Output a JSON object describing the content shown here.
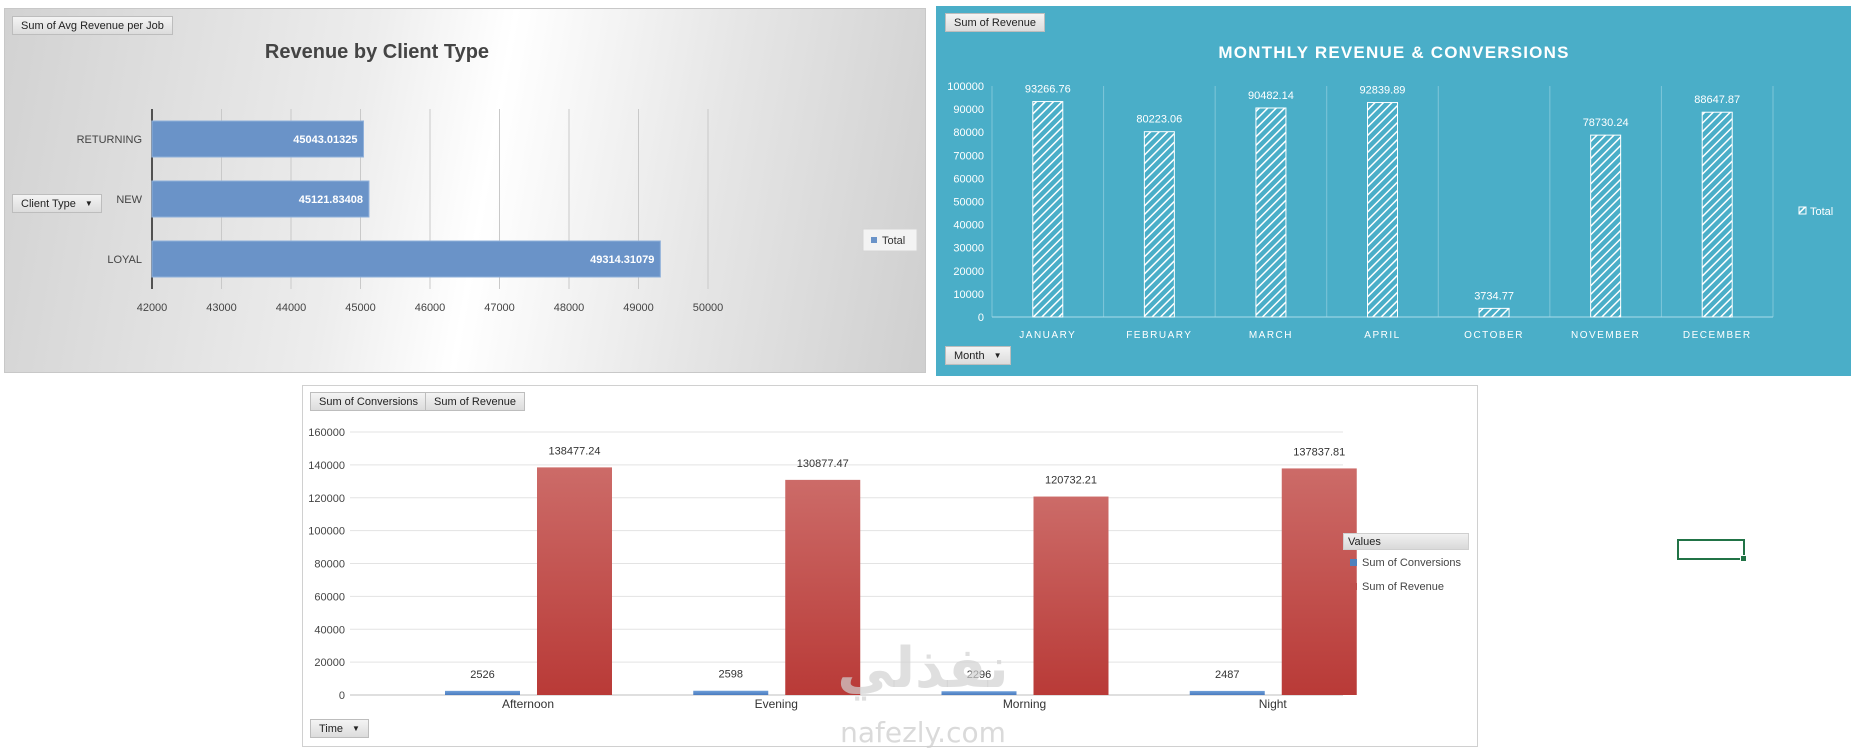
{
  "charts": {
    "client_type": {
      "field_button": "Sum of Avg Revenue per Job",
      "axis_field_button": "Client Type",
      "legend": "Total",
      "chart_data": {
        "type": "bar",
        "orientation": "horizontal",
        "title": "Revenue by Client Type",
        "categories": [
          "RETURNING",
          "NEW",
          "LOYAL"
        ],
        "series": [
          {
            "name": "Total",
            "values": [
              45043.01325,
              45121.83408,
              49314.31079
            ]
          }
        ],
        "data_labels": [
          "45043.01325",
          "45121.83408",
          "49314.31079"
        ],
        "xlim": [
          42000,
          50000
        ],
        "x_ticks": [
          "42000",
          "43000",
          "44000",
          "45000",
          "46000",
          "47000",
          "48000",
          "49000",
          "50000"
        ],
        "grid": true,
        "legend_position": "right",
        "colors": {
          "bar": "#6a93c8"
        }
      }
    },
    "monthly": {
      "field_button": "Sum of Revenue",
      "axis_field_button": "Month",
      "legend": "Total",
      "chart_data": {
        "type": "bar",
        "title": "MONTHLY REVENUE & CONVERSIONS",
        "categories": [
          "JANUARY",
          "FEBRUARY",
          "MARCH",
          "APRIL",
          "OCTOBER",
          "NOVEMBER",
          "DECEMBER"
        ],
        "series": [
          {
            "name": "Total",
            "values": [
              93266.76,
              80223.06,
              90482.14,
              92839.89,
              3734.77,
              78730.24,
              88647.87
            ]
          }
        ],
        "data_labels": [
          "93266.76",
          "80223.06",
          "90482.14",
          "92839.89",
          "3734.77",
          "78730.24",
          "88647.87"
        ],
        "ylim": [
          0,
          100000
        ],
        "y_ticks": [
          "0",
          "10000",
          "20000",
          "30000",
          "40000",
          "50000",
          "60000",
          "70000",
          "80000",
          "90000",
          "100000"
        ],
        "grid": true,
        "legend_position": "right",
        "colors": {
          "background": "#4aaec8",
          "bar_fill": "hatched-white"
        }
      }
    },
    "time": {
      "field_buttons": [
        "Sum of Conversions",
        "Sum of Revenue"
      ],
      "axis_field_button": "Time",
      "legend_title": "Values",
      "chart_data": {
        "type": "bar",
        "categories": [
          "Afternoon",
          "Evening",
          "Morning",
          "Night"
        ],
        "series": [
          {
            "name": "Sum of Conversions",
            "values": [
              2526,
              2598,
              2296,
              2487
            ]
          },
          {
            "name": "Sum of Revenue",
            "values": [
              138477.24,
              130877.47,
              120732.21,
              137837.81
            ]
          }
        ],
        "data_labels": {
          "Sum of Conversions": [
            "2526",
            "2598",
            "2296",
            "2487"
          ],
          "Sum of Revenue": [
            "138477.24",
            "130877.47",
            "120732.21",
            "137837.81"
          ]
        },
        "ylim": [
          0,
          160000
        ],
        "y_ticks": [
          "0",
          "20000",
          "40000",
          "60000",
          "80000",
          "100000",
          "120000",
          "140000",
          "160000"
        ],
        "grid": true,
        "legend_position": "right",
        "colors": {
          "Sum of Conversions": "#4f81bd",
          "Sum of Revenue": "#c0504d"
        }
      }
    }
  },
  "watermark": {
    "arabic": "نفذلي",
    "latin": "nafezly.com"
  }
}
